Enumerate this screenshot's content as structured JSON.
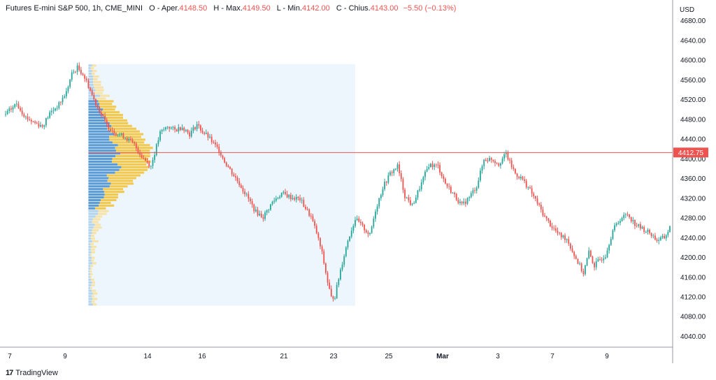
{
  "header": {
    "symbol": "Futures E-mini S&P 500, 1h, CME_MINI",
    "open_label": "O - Aper.",
    "open_value": "4148.50",
    "high_label": "H - Max.",
    "high_value": "4149.50",
    "low_label": "L - Min.",
    "low_value": "4142.00",
    "close_label": "C - Chius.",
    "close_value": "4143.00",
    "change": "−5.50 (−0.13%)"
  },
  "branding": {
    "name": "TradingView",
    "icon": "tradingview-logo"
  },
  "colors": {
    "up": "#26a69a",
    "down": "#ef5350",
    "poc_line": "#ef5350",
    "va_up": "#5b9bd5",
    "va_down": "#f2c94c"
  },
  "chart_data": {
    "type": "candlestick",
    "currency": "USD",
    "y_ticks": [
      4040,
      4080,
      4120,
      4160,
      4200,
      4240,
      4280,
      4320,
      4360,
      4400,
      4440,
      4480,
      4520,
      4560,
      4600,
      4640,
      4680
    ],
    "ylim": [
      4018,
      4722
    ],
    "x_ticks": [
      "7",
      "9",
      "14",
      "16",
      "21",
      "23",
      "25",
      "Mar",
      "3",
      "7",
      "9"
    ],
    "price_marker": {
      "value": 4412.75,
      "label": "4412.75"
    },
    "volume_profile": {
      "range": [
        4102,
        4592
      ],
      "poc": 4412.75
    },
    "path": [
      [
        0,
        4490
      ],
      [
        6,
        4512
      ],
      [
        11,
        4484
      ],
      [
        15,
        4475
      ],
      [
        20,
        4466
      ],
      [
        24,
        4492
      ],
      [
        29,
        4510
      ],
      [
        33,
        4535
      ],
      [
        36,
        4572
      ],
      [
        39,
        4585
      ],
      [
        42,
        4572
      ],
      [
        45,
        4548
      ],
      [
        48,
        4520
      ],
      [
        51,
        4498
      ],
      [
        55,
        4468
      ],
      [
        60,
        4452
      ],
      [
        65,
        4444
      ],
      [
        70,
        4428
      ],
      [
        74,
        4405
      ],
      [
        79,
        4385
      ],
      [
        84,
        4452
      ],
      [
        88,
        4466
      ],
      [
        92,
        4458
      ],
      [
        96,
        4465
      ],
      [
        100,
        4450
      ],
      [
        104,
        4470
      ],
      [
        107,
        4455
      ],
      [
        110,
        4445
      ],
      [
        113,
        4430
      ],
      [
        116,
        4418
      ],
      [
        119,
        4395
      ],
      [
        123,
        4372
      ],
      [
        127,
        4350
      ],
      [
        131,
        4325
      ],
      [
        136,
        4292
      ],
      [
        140,
        4282
      ],
      [
        145,
        4312
      ],
      [
        150,
        4330
      ],
      [
        155,
        4322
      ],
      [
        160,
        4318
      ],
      [
        163,
        4300
      ],
      [
        166,
        4282
      ],
      [
        169,
        4250
      ],
      [
        172,
        4208
      ],
      [
        175,
        4150
      ],
      [
        177,
        4118
      ],
      [
        179,
        4122
      ],
      [
        182,
        4175
      ],
      [
        186,
        4235
      ],
      [
        190,
        4278
      ],
      [
        194,
        4262
      ],
      [
        198,
        4245
      ],
      [
        201,
        4296
      ],
      [
        205,
        4342
      ],
      [
        209,
        4370
      ],
      [
        213,
        4385
      ],
      [
        217,
        4325
      ],
      [
        221,
        4305
      ],
      [
        226,
        4350
      ],
      [
        230,
        4388
      ],
      [
        235,
        4385
      ],
      [
        239,
        4350
      ],
      [
        244,
        4325
      ],
      [
        248,
        4305
      ],
      [
        252,
        4322
      ],
      [
        256,
        4345
      ],
      [
        260,
        4398
      ],
      [
        264,
        4400
      ],
      [
        268,
        4390
      ],
      [
        272,
        4410
      ],
      [
        274,
        4392
      ],
      [
        277,
        4370
      ],
      [
        281,
        4358
      ],
      [
        285,
        4336
      ],
      [
        289,
        4310
      ],
      [
        293,
        4282
      ],
      [
        297,
        4262
      ],
      [
        301,
        4245
      ],
      [
        305,
        4238
      ],
      [
        309,
        4205
      ],
      [
        314,
        4168
      ],
      [
        317,
        4210
      ],
      [
        320,
        4183
      ],
      [
        322,
        4192
      ],
      [
        326,
        4205
      ],
      [
        330,
        4255
      ],
      [
        334,
        4278
      ],
      [
        338,
        4288
      ],
      [
        342,
        4268
      ],
      [
        346,
        4258
      ],
      [
        350,
        4250
      ],
      [
        354,
        4235
      ],
      [
        358,
        4240
      ],
      [
        361,
        4260
      ]
    ]
  }
}
